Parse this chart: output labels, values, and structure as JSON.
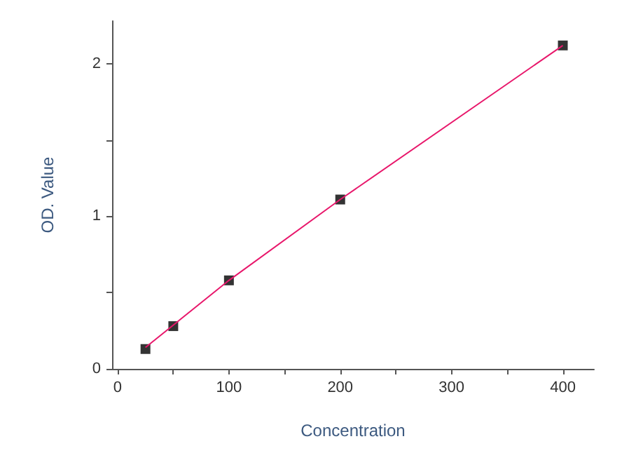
{
  "chart_data": {
    "type": "scatter",
    "xlabel": "Concentration",
    "ylabel": "OD. Value",
    "xlim": [
      -5,
      428
    ],
    "ylim": [
      0,
      2.28
    ],
    "xticks": [
      0,
      {
        "value": 50,
        "label": null
      },
      100,
      {
        "value": 150,
        "label": null
      },
      200,
      {
        "value": 250,
        "label": null
      },
      300,
      {
        "value": 350,
        "label": null
      },
      400
    ],
    "yticks": [
      0,
      {
        "value": 0.5,
        "label": null
      },
      1,
      {
        "value": 1.5,
        "label": null
      },
      2
    ],
    "grid": false,
    "marker": "square",
    "series": [
      {
        "color": "#000000",
        "x": [
          25,
          50,
          100,
          200,
          400
        ],
        "values": [
          0.13,
          0.28,
          0.58,
          1.11,
          2.12
        ]
      },
      {
        "type": "line",
        "color": "#e8176b",
        "marker": "none",
        "line_style": "solid",
        "x": [
          25,
          100,
          200,
          400
        ],
        "values": [
          0.14,
          0.58,
          1.11,
          2.12
        ]
      }
    ]
  }
}
